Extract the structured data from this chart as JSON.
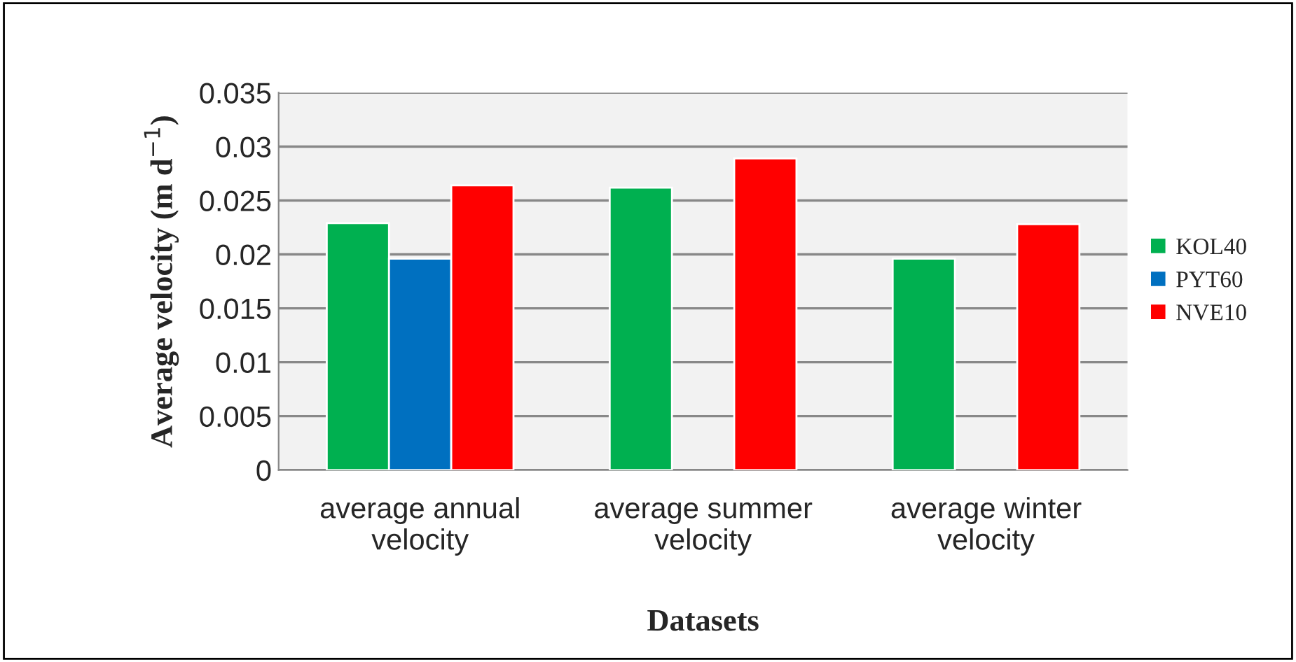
{
  "chart_data": {
    "type": "bar",
    "xlabel": "Datasets",
    "ylabel": "Average velocity (m d$^{−1}$)",
    "categories": [
      "average annual\nvelocity",
      "average summer\nvelocity",
      "average winter\nvelocity"
    ],
    "series": [
      {
        "name": "KOL40",
        "color": "#00b050",
        "values": [
          0.0229,
          0.0262,
          0.0196
        ]
      },
      {
        "name": "PYT60",
        "color": "#0070c0",
        "values": [
          0.0196,
          null,
          null
        ]
      },
      {
        "name": "NVE10",
        "color": "#ff0000",
        "values": [
          0.0264,
          0.0289,
          0.0228
        ]
      }
    ],
    "ylim": [
      0,
      0.035
    ],
    "yticks": [
      0,
      0.005,
      0.01,
      0.015,
      0.02,
      0.025,
      0.03,
      0.035
    ],
    "grid": "y",
    "legend": "right"
  }
}
